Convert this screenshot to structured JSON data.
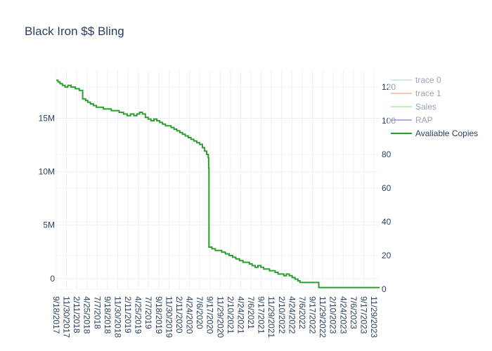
{
  "chart_data": {
    "type": "line",
    "title": "Black Iron $$ Bling",
    "xlabel": "",
    "ylabel": "",
    "y2label": "",
    "x_tick_labels": [
      "9/18/2017",
      "11/30/2017",
      "2/11/2018",
      "4/25/2018",
      "7/7/2018",
      "9/18/2018",
      "11/30/2018",
      "2/11/2019",
      "4/25/2019",
      "7/7/2019",
      "9/18/2019",
      "11/30/2019",
      "2/11/2020",
      "4/24/2020",
      "7/6/2020",
      "9/17/2020",
      "11/29/2020",
      "2/10/2021",
      "4/24/2021",
      "7/6/2021",
      "9/17/2021",
      "11/29/2021",
      "2/10/2022",
      "4/24/2022",
      "7/6/2022",
      "9/17/2022",
      "11/29/2022",
      "2/10/2023",
      "4/24/2023",
      "7/6/2023",
      "9/17/2023",
      "11/29/2023"
    ],
    "y_ticks": [
      {
        "value": 0,
        "label": "0"
      },
      {
        "value": 5000000,
        "label": "5M"
      },
      {
        "value": 10000000,
        "label": "10M"
      },
      {
        "value": 15000000,
        "label": "15M"
      }
    ],
    "y2_ticks": [
      {
        "value": 0,
        "label": "0"
      },
      {
        "value": 20,
        "label": "20"
      },
      {
        "value": 40,
        "label": "40"
      },
      {
        "value": 60,
        "label": "60"
      },
      {
        "value": 80,
        "label": "80"
      },
      {
        "value": 100,
        "label": "100"
      },
      {
        "value": 120,
        "label": "120"
      }
    ],
    "ylim": [
      -1000000,
      19500000
    ],
    "y2lim": [
      0,
      130
    ],
    "grid": true,
    "legend_position": "top-right",
    "series": [
      {
        "name": "trace 0",
        "color": "#add8e6",
        "axis": "y",
        "x": [],
        "values": []
      },
      {
        "name": "trace 1",
        "color": "#ffa07a",
        "axis": "y",
        "x": [],
        "values": []
      },
      {
        "name": "Sales",
        "color": "#90ee90",
        "axis": "y",
        "x": [],
        "values": []
      },
      {
        "name": "RAP",
        "color": "#9370db",
        "axis": "y",
        "x": [],
        "values": []
      },
      {
        "name": "Avaliable Copies",
        "color": "#2ca02c",
        "axis": "y2",
        "step": true,
        "x": [
          "2017-09-18",
          "2017-10-01",
          "2017-10-15",
          "2017-11-01",
          "2017-11-20",
          "2017-12-10",
          "2018-01-01",
          "2018-02-01",
          "2018-03-01",
          "2018-03-25",
          "2018-04-15",
          "2018-05-01",
          "2018-05-20",
          "2018-06-10",
          "2018-07-01",
          "2018-07-25",
          "2018-08-20",
          "2018-09-15",
          "2018-10-15",
          "2018-11-10",
          "2018-12-10",
          "2019-01-10",
          "2019-02-05",
          "2019-03-01",
          "2019-03-25",
          "2019-04-15",
          "2019-05-05",
          "2019-05-25",
          "2019-06-15",
          "2019-07-05",
          "2019-07-25",
          "2019-08-15",
          "2019-09-05",
          "2019-09-25",
          "2019-10-15",
          "2019-11-05",
          "2019-11-25",
          "2019-12-15",
          "2020-01-05",
          "2020-01-25",
          "2020-02-15",
          "2020-03-05",
          "2020-03-25",
          "2020-04-15",
          "2020-05-05",
          "2020-05-25",
          "2020-06-15",
          "2020-07-05",
          "2020-07-25",
          "2020-08-10",
          "2020-08-25",
          "2020-09-05",
          "2020-09-08",
          "2020-09-10",
          "2020-10-01",
          "2020-10-25",
          "2020-11-15",
          "2020-12-10",
          "2021-01-05",
          "2021-02-01",
          "2021-02-25",
          "2021-03-20",
          "2021-04-15",
          "2021-05-10",
          "2021-06-05",
          "2021-06-25",
          "2021-07-15",
          "2021-08-05",
          "2021-08-25",
          "2021-09-15",
          "2021-10-05",
          "2021-10-25",
          "2021-11-15",
          "2021-12-05",
          "2021-12-25",
          "2022-01-15",
          "2022-02-05",
          "2022-02-25",
          "2022-03-15",
          "2022-04-05",
          "2022-04-25",
          "2022-05-15",
          "2022-06-05",
          "2022-06-20",
          "2022-07-10",
          "2022-08-01",
          "2022-09-01",
          "2022-10-01",
          "2022-11-01",
          "2022-12-01",
          "2023-01-01",
          "2023-02-01",
          "2023-03-01",
          "2023-04-01",
          "2023-05-01",
          "2023-06-01",
          "2023-07-01",
          "2023-08-01",
          "2023-09-01",
          "2023-10-01",
          "2023-11-01",
          "2023-12-01",
          "2024-01-08"
        ],
        "values": [
          124,
          123,
          122,
          121,
          120,
          121,
          120,
          119,
          118,
          113,
          112,
          111,
          110,
          109,
          108,
          108,
          107,
          107,
          106,
          106,
          105,
          104,
          103,
          104,
          103,
          104,
          105,
          104,
          102,
          101,
          100,
          101,
          100,
          99,
          98,
          97,
          97,
          96,
          95,
          94,
          93,
          92,
          91,
          90,
          89,
          88,
          87,
          86,
          84,
          82,
          80,
          78,
          72,
          25,
          24,
          23,
          23,
          22,
          21,
          20,
          19,
          18,
          17,
          16,
          16,
          15,
          14,
          13,
          14,
          13,
          12,
          12,
          11,
          11,
          10,
          9,
          9,
          8,
          9,
          8,
          7,
          6,
          5,
          4,
          4,
          4,
          4,
          4,
          1,
          1,
          1,
          1,
          1,
          1,
          1,
          1,
          1,
          1,
          1,
          1,
          1,
          1,
          1
        ]
      }
    ]
  }
}
